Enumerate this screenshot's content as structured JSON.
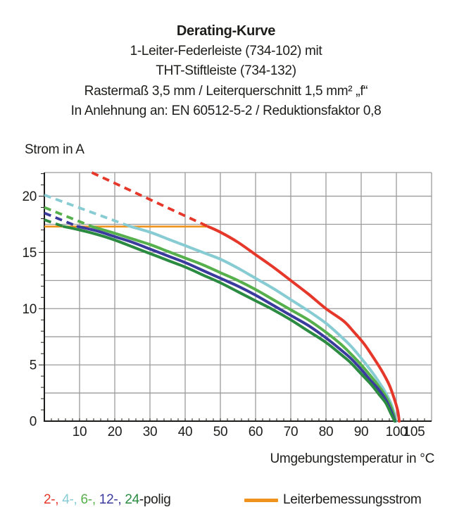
{
  "header": {
    "title": "Derating-Kurve",
    "subtitle_lines": [
      "1-Leiter-Federleiste (734-102) mit",
      "THT-Stiftleiste (734-132)",
      "Rastermaß 3,5 mm / Leiterquerschnitt 1,5 mm² „f“",
      "In Anlehnung an: EN 60512-5-2 / Reduktionsfaktor 0,8"
    ]
  },
  "chart": {
    "y_axis_title": "Strom in A",
    "x_axis_title": "Umgebungstemperatur in °C"
  },
  "chart_data": {
    "type": "line",
    "xlabel": "Umgebungstemperatur in °C",
    "ylabel": "Strom in A",
    "xlim": [
      0,
      110
    ],
    "ylim": [
      0,
      22.1
    ],
    "x_tick_labels": [
      10,
      20,
      30,
      40,
      50,
      60,
      70,
      80,
      90,
      100,
      105
    ],
    "y_tick_labels": [
      0,
      5,
      10,
      15,
      20
    ],
    "minor_tick_step_x": 2,
    "minor_tick_step_y": 1,
    "grid": {
      "visible": true,
      "x_step": 10,
      "y_step": 2.5,
      "color": "#9c9c9c"
    },
    "axis_color": "#1d1d1b",
    "reference_line": {
      "label": "Leiterbemessungsstrom",
      "y": 17.3,
      "x_start": 0,
      "x_end": 46.5,
      "color": "#f0931e"
    },
    "series": [
      {
        "name": "2-polig",
        "color": "#e6372b",
        "dashed_above_rating": [
          [
            13.5,
            22.1
          ],
          [
            46.5,
            17.3
          ]
        ],
        "solid": [
          [
            46.5,
            17.3
          ],
          [
            50,
            16.8
          ],
          [
            55,
            15.9
          ],
          [
            60,
            14.8
          ],
          [
            65,
            13.7
          ],
          [
            70,
            12.5
          ],
          [
            75,
            11.3
          ],
          [
            80,
            10.0
          ],
          [
            85,
            8.9
          ],
          [
            88,
            7.9
          ],
          [
            91,
            6.8
          ],
          [
            94,
            5.4
          ],
          [
            96,
            4.4
          ],
          [
            98,
            3.2
          ],
          [
            99.5,
            1.9
          ],
          [
            100.4,
            0.9
          ],
          [
            100.8,
            0
          ]
        ]
      },
      {
        "name": "4-polig",
        "color": "#88ccd3",
        "dashed_above_rating": [
          [
            0,
            20.1
          ],
          [
            24.5,
            17.3
          ]
        ],
        "solid": [
          [
            24.5,
            17.3
          ],
          [
            30,
            16.8
          ],
          [
            35,
            16.2
          ],
          [
            40,
            15.6
          ],
          [
            45,
            15.0
          ],
          [
            50,
            14.4
          ],
          [
            55,
            13.6
          ],
          [
            60,
            12.7
          ],
          [
            65,
            11.8
          ],
          [
            70,
            10.8
          ],
          [
            75,
            9.8
          ],
          [
            80,
            8.7
          ],
          [
            84,
            7.6
          ],
          [
            87,
            6.7
          ],
          [
            90,
            5.6
          ],
          [
            93,
            4.4
          ],
          [
            95,
            3.5
          ],
          [
            97,
            2.5
          ],
          [
            98.8,
            1.3
          ],
          [
            99.9,
            0
          ]
        ]
      },
      {
        "name": "6-polig",
        "color": "#56b04b",
        "dashed_above_rating": [
          [
            0,
            19.0
          ],
          [
            13.5,
            17.3
          ]
        ],
        "solid": [
          [
            13.5,
            17.3
          ],
          [
            20,
            16.7
          ],
          [
            25,
            16.2
          ],
          [
            30,
            15.7
          ],
          [
            35,
            15.1
          ],
          [
            40,
            14.5
          ],
          [
            45,
            13.9
          ],
          [
            50,
            13.2
          ],
          [
            55,
            12.5
          ],
          [
            60,
            11.7
          ],
          [
            65,
            10.8
          ],
          [
            70,
            9.9
          ],
          [
            75,
            9.0
          ],
          [
            80,
            7.9
          ],
          [
            84,
            6.9
          ],
          [
            87,
            6.0
          ],
          [
            90,
            5.0
          ],
          [
            93,
            3.9
          ],
          [
            95,
            3.1
          ],
          [
            97,
            2.2
          ],
          [
            98.7,
            1.1
          ],
          [
            99.7,
            0
          ]
        ]
      },
      {
        "name": "12-polig",
        "color": "#3b3a9d",
        "dashed_above_rating": [
          [
            0,
            18.5
          ],
          [
            9.5,
            17.3
          ]
        ],
        "solid": [
          [
            9.5,
            17.3
          ],
          [
            15,
            16.9
          ],
          [
            20,
            16.4
          ],
          [
            25,
            15.9
          ],
          [
            30,
            15.3
          ],
          [
            35,
            14.7
          ],
          [
            40,
            14.1
          ],
          [
            45,
            13.4
          ],
          [
            50,
            12.7
          ],
          [
            55,
            12.0
          ],
          [
            60,
            11.2
          ],
          [
            65,
            10.3
          ],
          [
            70,
            9.4
          ],
          [
            75,
            8.5
          ],
          [
            80,
            7.4
          ],
          [
            84,
            6.4
          ],
          [
            87,
            5.6
          ],
          [
            90,
            4.6
          ],
          [
            93,
            3.5
          ],
          [
            95,
            2.8
          ],
          [
            97,
            1.9
          ],
          [
            98.5,
            0.9
          ],
          [
            99.6,
            0
          ]
        ]
      },
      {
        "name": "24-polig",
        "color": "#2b8b41",
        "dashed_above_rating": [
          [
            0,
            17.9
          ],
          [
            5.5,
            17.3
          ]
        ],
        "solid": [
          [
            5.5,
            17.3
          ],
          [
            10,
            17.0
          ],
          [
            15,
            16.6
          ],
          [
            20,
            16.1
          ],
          [
            25,
            15.5
          ],
          [
            30,
            14.9
          ],
          [
            35,
            14.3
          ],
          [
            40,
            13.7
          ],
          [
            45,
            13.0
          ],
          [
            50,
            12.3
          ],
          [
            55,
            11.5
          ],
          [
            60,
            10.7
          ],
          [
            65,
            9.9
          ],
          [
            70,
            9.0
          ],
          [
            75,
            8.0
          ],
          [
            80,
            7.0
          ],
          [
            84,
            6.0
          ],
          [
            87,
            5.2
          ],
          [
            90,
            4.2
          ],
          [
            93,
            3.2
          ],
          [
            95,
            2.4
          ],
          [
            97,
            1.6
          ],
          [
            98.4,
            0.7
          ],
          [
            99.5,
            0
          ]
        ]
      }
    ]
  },
  "legend": {
    "poles_segments": [
      {
        "text": "2-, ",
        "color": "#e6372b"
      },
      {
        "text": "4-, ",
        "color": "#88ccd3"
      },
      {
        "text": "6-, ",
        "color": "#56b04b"
      },
      {
        "text": "12-, ",
        "color": "#3b3a9d"
      },
      {
        "text": "24",
        "color": "#2b8b41"
      },
      {
        "text": "-polig",
        "color": "#1d1d1b"
      }
    ],
    "reference_label": "Leiterbemessungsstrom"
  }
}
